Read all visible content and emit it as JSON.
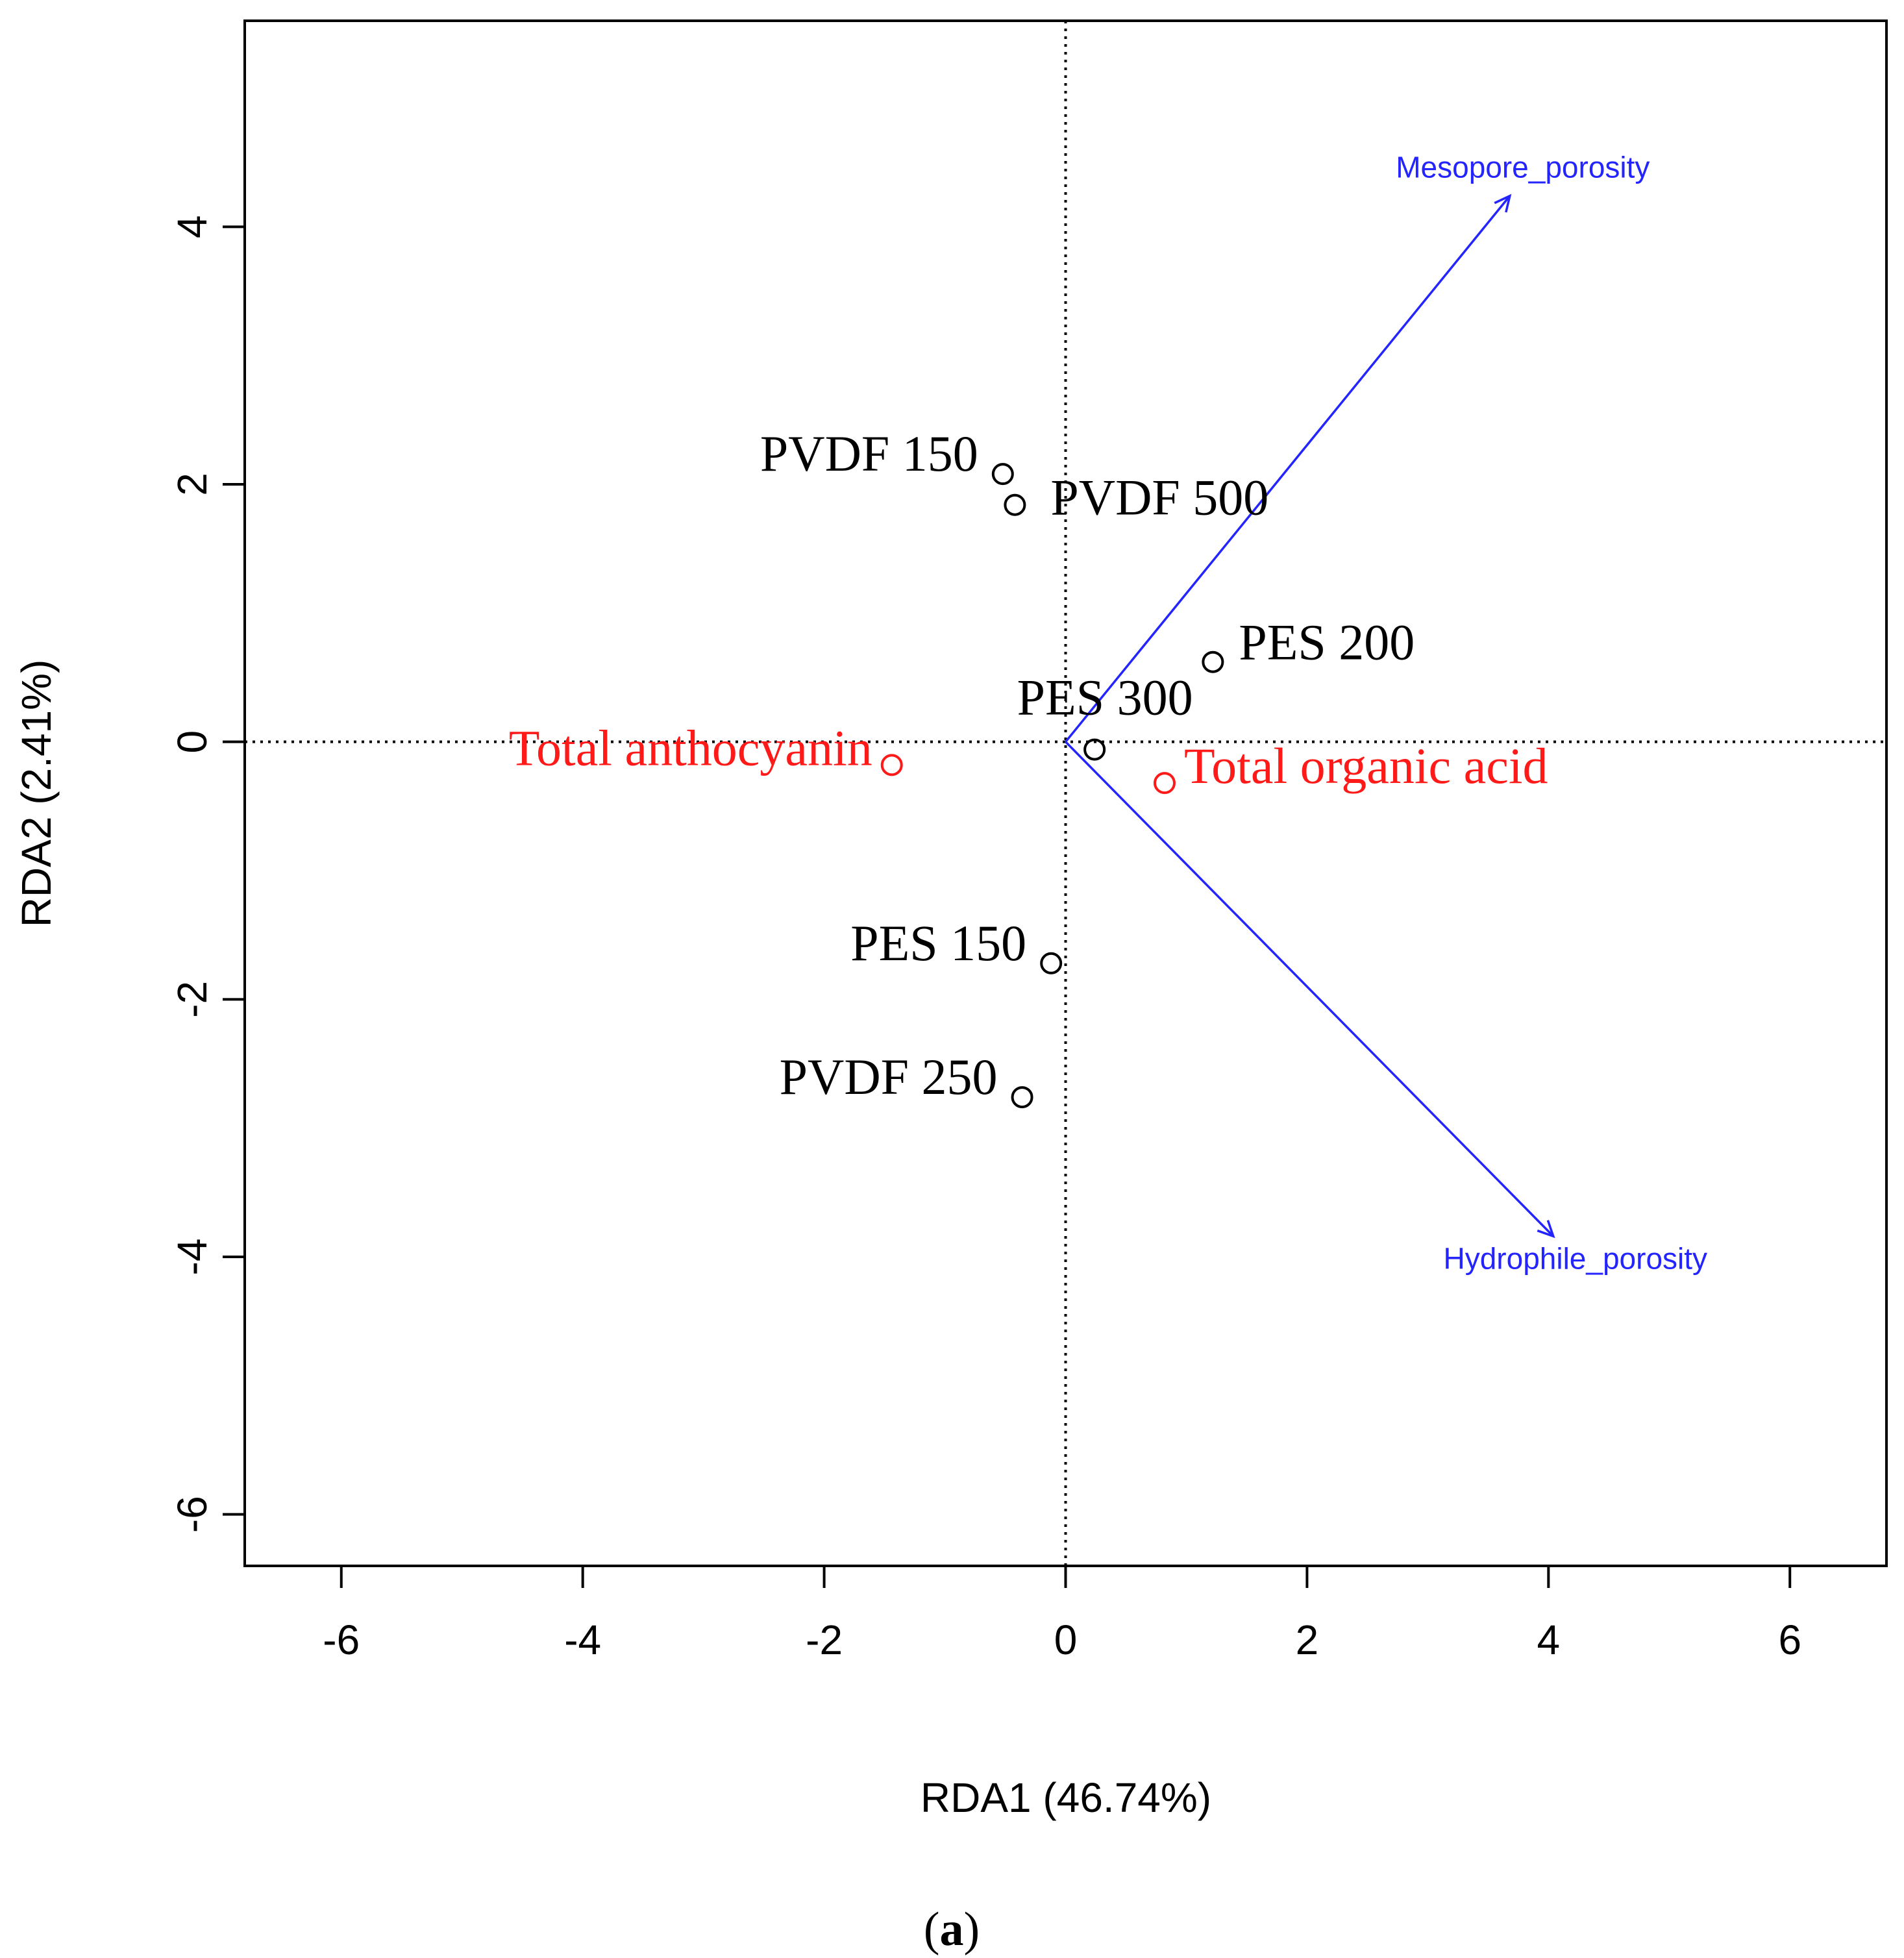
{
  "chart_data": {
    "type": "scatter",
    "subtype": "rda-triplot",
    "xlabel": "RDA1 (46.74%)",
    "ylabel": "RDA2 (2.41%)",
    "xlim": [
      -6.8,
      6.8
    ],
    "ylim": [
      -6.4,
      5.6
    ],
    "xticks": [
      -6,
      -4,
      -2,
      0,
      2,
      4,
      6
    ],
    "yticks": [
      -6,
      -4,
      -2,
      0,
      2,
      4
    ],
    "reference_lines": {
      "x": 0,
      "y": 0,
      "style": "dotted"
    },
    "sites": [
      {
        "label": "PVDF 150",
        "x": -0.52,
        "y": 2.08
      },
      {
        "label": "PVDF 500",
        "x": -0.42,
        "y": 1.84
      },
      {
        "label": "PES 200",
        "x": 1.22,
        "y": 0.62
      },
      {
        "label": "PES 300",
        "x": 0.24,
        "y": -0.06
      },
      {
        "label": "PES 150",
        "x": -0.12,
        "y": -1.72
      },
      {
        "label": "PVDF 250",
        "x": -0.36,
        "y": -2.76
      }
    ],
    "species": [
      {
        "label": "Total anthocyanin",
        "x": -1.44,
        "y": -0.18
      },
      {
        "label": "Total organic acid",
        "x": 0.82,
        "y": -0.32
      }
    ],
    "environment_vectors": [
      {
        "label": "Mesopore_porosity",
        "x": 3.68,
        "y": 4.24
      },
      {
        "label": "Hydrophile_porosity",
        "x": 4.04,
        "y": -3.84
      }
    ],
    "colors": {
      "sites": "#000000",
      "species": "#ff1a1a",
      "vectors": "#2424ff"
    }
  },
  "caption": {
    "open": "(",
    "letter": "a",
    "close": ")"
  }
}
